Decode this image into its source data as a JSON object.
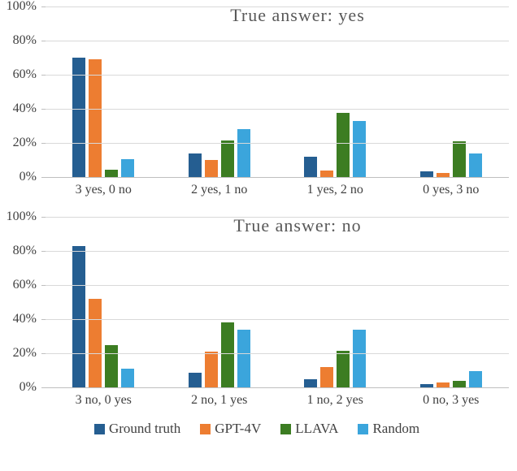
{
  "colors": {
    "ground_truth": "#255E91",
    "gpt4v": "#ED7D31",
    "llava": "#3C7D22",
    "random": "#3BA5DC",
    "gridline": "#D9D9D9",
    "axis": "#BFBFBF",
    "title_text": "#595959",
    "axis_text": "#404040"
  },
  "chart_data": [
    {
      "type": "bar",
      "title": "True answer:  yes",
      "categories": [
        "3 yes, 0 no",
        "2 yes, 1 no",
        "1 yes, 2 no",
        "0 yes, 3 no"
      ],
      "series": [
        {
          "name": "Ground truth",
          "color": "#255E91",
          "values": [
            70,
            14,
            12,
            3.5
          ]
        },
        {
          "name": "GPT-4V",
          "color": "#ED7D31",
          "values": [
            69,
            10,
            4,
            2.5
          ]
        },
        {
          "name": "LLAVA",
          "color": "#3C7D22",
          "values": [
            4.5,
            21.5,
            37.5,
            21
          ]
        },
        {
          "name": "Random",
          "color": "#3BA5DC",
          "values": [
            10.5,
            28,
            33,
            14
          ]
        }
      ],
      "xlabel": "",
      "ylabel": "",
      "ylim": [
        0,
        100
      ],
      "yticks": [
        "0%",
        "20%",
        "40%",
        "60%",
        "80%",
        "100%"
      ],
      "grid": true,
      "legend_position": "bottom-shared"
    },
    {
      "type": "bar",
      "title": "True answer:  no",
      "categories": [
        "3 no, 0 yes",
        "2 no, 1 yes",
        "1 no, 2 yes",
        "0 no, 3 yes"
      ],
      "series": [
        {
          "name": "Ground truth",
          "color": "#255E91",
          "values": [
            83,
            8.5,
            5,
            2
          ]
        },
        {
          "name": "GPT-4V",
          "color": "#ED7D31",
          "values": [
            52,
            21,
            12,
            3
          ]
        },
        {
          "name": "LLAVA",
          "color": "#3C7D22",
          "values": [
            25,
            38,
            21.5,
            4
          ]
        },
        {
          "name": "Random",
          "color": "#3BA5DC",
          "values": [
            11,
            34,
            34,
            9.5
          ]
        }
      ],
      "xlabel": "",
      "ylabel": "",
      "ylim": [
        0,
        100
      ],
      "yticks": [
        "0%",
        "20%",
        "40%",
        "60%",
        "80%",
        "100%"
      ],
      "grid": true,
      "legend_position": "bottom-shared"
    }
  ],
  "legend": {
    "items": [
      {
        "label": "Ground truth",
        "color": "#255E91"
      },
      {
        "label": "GPT-4V",
        "color": "#ED7D31"
      },
      {
        "label": "LLAVA",
        "color": "#3C7D22"
      },
      {
        "label": "Random",
        "color": "#3BA5DC"
      }
    ]
  }
}
